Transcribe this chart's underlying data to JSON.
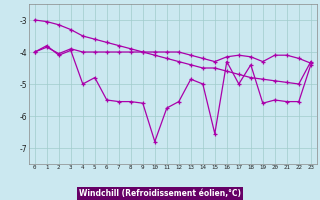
{
  "xlabel": "Windchill (Refroidissement éolien,°C)",
  "background_color": "#cbe8f0",
  "grid_color": "#a0cccc",
  "line_color": "#aa00aa",
  "xlabel_bg": "#660066",
  "xlabel_fg": "#ffffff",
  "x_values": [
    0,
    1,
    2,
    3,
    4,
    5,
    6,
    7,
    8,
    9,
    10,
    11,
    12,
    13,
    14,
    15,
    16,
    17,
    18,
    19,
    20,
    21,
    22,
    23
  ],
  "line1": [
    -4.0,
    -3.85,
    -4.05,
    -3.9,
    -4.0,
    -4.0,
    -4.0,
    -4.0,
    -4.0,
    -4.0,
    -4.0,
    -4.0,
    -4.0,
    -4.1,
    -4.2,
    -4.3,
    -4.15,
    -4.1,
    -4.15,
    -4.3,
    -4.1,
    -4.1,
    -4.2,
    -4.35
  ],
  "line2": [
    -4.0,
    -3.8,
    -4.1,
    -3.95,
    -5.0,
    -4.8,
    -5.5,
    -5.55,
    -5.55,
    -5.6,
    -6.8,
    -5.75,
    -5.55,
    -4.85,
    -5.0,
    -6.55,
    -4.3,
    -5.0,
    -4.4,
    -5.6,
    -5.5,
    -5.55,
    -5.55,
    -4.4
  ],
  "line3": [
    -3.0,
    -3.05,
    -3.15,
    -3.3,
    -3.5,
    -3.6,
    -3.7,
    -3.8,
    -3.9,
    -4.0,
    -4.1,
    -4.2,
    -4.3,
    -4.4,
    -4.5,
    -4.5,
    -4.6,
    -4.7,
    -4.8,
    -4.85,
    -4.9,
    -4.95,
    -5.0,
    -4.3
  ],
  "ylim": [
    -7.5,
    -2.5
  ],
  "xlim": [
    -0.5,
    23.5
  ],
  "yticks": [
    -7,
    -6,
    -5,
    -4,
    -3
  ],
  "xticks": [
    0,
    1,
    2,
    3,
    4,
    5,
    6,
    7,
    8,
    9,
    10,
    11,
    12,
    13,
    14,
    15,
    16,
    17,
    18,
    19,
    20,
    21,
    22,
    23
  ]
}
